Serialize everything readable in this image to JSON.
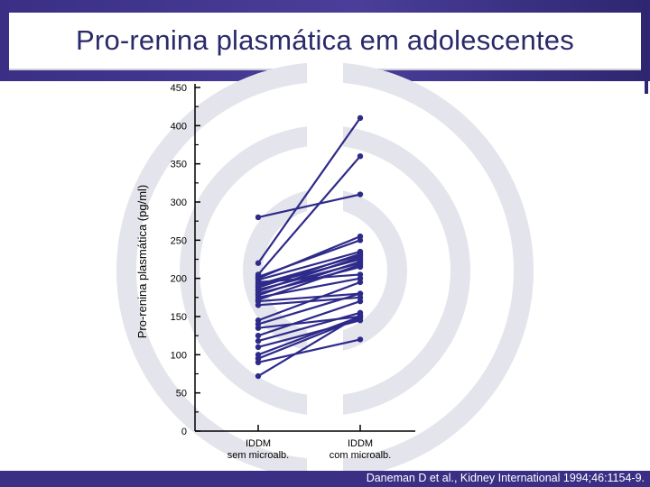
{
  "slide": {
    "title": "Pro-renina plasmática em adolescentes",
    "citation": "Daneman D et al., Kidney International 1994;46:1154-9."
  },
  "colors": {
    "header": "#3a2f85",
    "series": "#2e2a8a",
    "watermark": "#e4e4ec"
  },
  "chart_data": {
    "type": "line",
    "title": "",
    "xlabel": "",
    "ylabel": "Pro-renina plasmática (pg/ml)",
    "ylim": [
      0,
      450
    ],
    "yticks": [
      0,
      50,
      100,
      150,
      200,
      250,
      300,
      350,
      400,
      450
    ],
    "categories": [
      "IDDM\nsem microalb.",
      "IDDM\ncom microalb."
    ],
    "grid": false,
    "legend": "none",
    "pairs": [
      [
        280,
        310
      ],
      [
        220,
        410
      ],
      [
        205,
        360
      ],
      [
        202,
        250
      ],
      [
        200,
        255
      ],
      [
        198,
        235
      ],
      [
        195,
        205
      ],
      [
        192,
        230
      ],
      [
        190,
        225
      ],
      [
        188,
        232
      ],
      [
        185,
        220
      ],
      [
        183,
        228
      ],
      [
        180,
        215
      ],
      [
        178,
        222
      ],
      [
        175,
        200
      ],
      [
        172,
        218
      ],
      [
        170,
        180
      ],
      [
        165,
        175
      ],
      [
        145,
        195
      ],
      [
        140,
        180
      ],
      [
        135,
        150
      ],
      [
        125,
        170
      ],
      [
        118,
        155
      ],
      [
        110,
        145
      ],
      [
        100,
        150
      ],
      [
        95,
        148
      ],
      [
        90,
        120
      ],
      [
        72,
        152
      ]
    ]
  }
}
